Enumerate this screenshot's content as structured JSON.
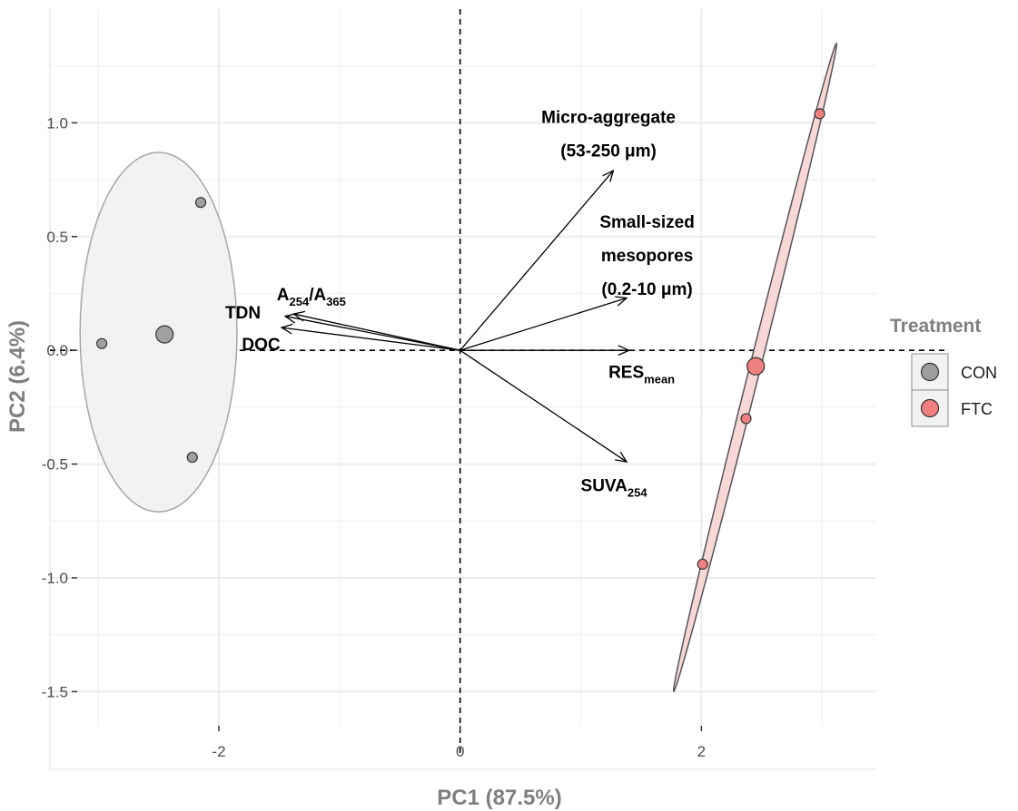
{
  "chart_data": {
    "type": "scatter",
    "title": "",
    "xlabel": "PC1 (87.5%)",
    "ylabel": "PC2 (6.4%)",
    "xlim": [
      -3.4,
      3.45
    ],
    "ylim": [
      -1.65,
      1.5
    ],
    "x_ticks": [
      -2,
      0,
      2
    ],
    "y_ticks": [
      -1.5,
      -1.0,
      -0.5,
      0.0,
      0.5,
      1.0
    ],
    "x_tick_labels": [
      "-2",
      "0",
      "2"
    ],
    "y_tick_labels": [
      "-1.5",
      "-1.0",
      "-0.5",
      "0.0",
      "0.5",
      "1.0"
    ],
    "grid": true,
    "reference_lines": {
      "x": 0,
      "y": 0,
      "style": "dashed"
    },
    "legend": {
      "title": "Treatment",
      "position": "right",
      "entries": [
        {
          "name": "CON",
          "color": "#9e9e9e"
        },
        {
          "name": "FTC",
          "color": "#f08080"
        }
      ]
    },
    "series": [
      {
        "name": "CON",
        "color": "#a0a0a0",
        "ellipse_fill": "#f2f2f2",
        "ellipse_stroke": "#a6a6a6",
        "points": [
          {
            "x": -2.15,
            "y": 0.65
          },
          {
            "x": -2.97,
            "y": 0.03
          },
          {
            "x": -2.22,
            "y": -0.47
          }
        ],
        "centroid": {
          "x": -2.45,
          "y": 0.07
        },
        "ellipse": {
          "cx": -2.5,
          "cy": 0.08,
          "rx": 0.65,
          "ry": 0.79,
          "angle_deg": 0
        }
      },
      {
        "name": "FTC",
        "color": "#f08080",
        "ellipse_fill": "#fad7d7",
        "ellipse_stroke": "#555555",
        "points": [
          {
            "x": 2.98,
            "y": 1.04
          },
          {
            "x": 2.37,
            "y": -0.3
          },
          {
            "x": 2.01,
            "y": -0.94
          }
        ],
        "centroid": {
          "x": 2.45,
          "y": -0.07
        },
        "ellipse": {
          "start": {
            "x": 1.77,
            "y": -1.5
          },
          "end": {
            "x": 3.12,
            "y": 1.35
          },
          "half_width": 0.045
        }
      }
    ],
    "vectors": [
      {
        "id": "micro-aggregate",
        "x": 1.27,
        "y": 0.79,
        "lines": [
          [
            {
              "t": "Micro-aggregate"
            }
          ],
          [
            {
              "t": "(53-250 μm)"
            }
          ]
        ],
        "label_x": 1.23,
        "label_y": 1.0,
        "anchor": "middle"
      },
      {
        "id": "small-mesopores",
        "x": 1.38,
        "y": 0.23,
        "lines": [
          [
            {
              "t": "Small-sized"
            }
          ],
          [
            {
              "t": "mesopores"
            }
          ],
          [
            {
              "t": "(0.2-10 μm)"
            }
          ]
        ],
        "label_x": 1.55,
        "label_y": 0.54,
        "anchor": "middle"
      },
      {
        "id": "a254-a365",
        "x": -1.38,
        "y": 0.16,
        "lines": [
          [
            {
              "t": "A"
            },
            {
              "t": "254",
              "sub": true
            },
            {
              "t": "/A"
            },
            {
              "t": "365",
              "sub": true
            }
          ]
        ],
        "label_x": -1.52,
        "label_y": 0.22,
        "anchor": "start"
      },
      {
        "id": "tdn",
        "x": -1.45,
        "y": 0.15,
        "lines": [
          [
            {
              "t": "TDN"
            }
          ]
        ],
        "label_x": -1.8,
        "label_y": 0.14,
        "anchor": "middle"
      },
      {
        "id": "doc",
        "x": -1.48,
        "y": 0.1,
        "lines": [
          [
            {
              "t": "DOC"
            }
          ]
        ],
        "label_x": -1.65,
        "label_y": 0.0,
        "anchor": "middle"
      },
      {
        "id": "res-mean",
        "x": 1.4,
        "y": 0.0,
        "lines": [
          [
            {
              "t": "RES"
            },
            {
              "t": "mean",
              "sub": true
            }
          ]
        ],
        "label_x": 1.23,
        "label_y": -0.12,
        "anchor": "start"
      },
      {
        "id": "suva254",
        "x": 1.38,
        "y": -0.49,
        "lines": [
          [
            {
              "t": "SUVA"
            },
            {
              "t": "254",
              "sub": true
            }
          ]
        ],
        "label_x": 1.0,
        "label_y": -0.62,
        "anchor": "start"
      }
    ]
  }
}
